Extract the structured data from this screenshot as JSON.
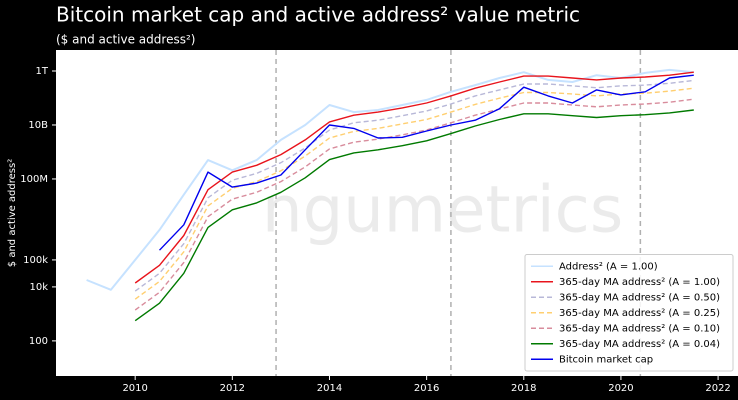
{
  "chart_data": {
    "type": "line",
    "title": "Bitcoin market cap and active address² value metric",
    "subtitle": "($ and active address²)",
    "y_label": "$ and active address²",
    "watermark": "ngumetrics",
    "x": [
      2009,
      2009.5,
      2010,
      2010.5,
      2011,
      2011.5,
      2012,
      2012.5,
      2013,
      2013.5,
      2014,
      2014.5,
      2015,
      2015.5,
      2016,
      2016.5,
      2017,
      2017.5,
      2018,
      2018.5,
      2019,
      2019.5,
      2020,
      2020.5,
      2021,
      2021.5
    ],
    "series": [
      {
        "name": "Address² (A = 1.00)",
        "color": "#c6e2ff",
        "dashed": false,
        "values": [
          18000,
          7800,
          100000,
          1300000,
          26000000,
          500000000,
          210000000,
          500000000,
          2800000000,
          10000000000,
          55000000000,
          30000000000,
          36000000000,
          55000000000,
          85000000000,
          170000000000,
          300000000000,
          550000000000,
          900000000000,
          470000000000,
          390000000000,
          700000000000,
          550000000000,
          850000000000,
          1100000000000,
          900000000000
        ]
      },
      {
        "name": "365-day MA address² (A = 1.00)",
        "color": "#e8141c",
        "dashed": false,
        "values": [
          null,
          null,
          14000,
          63000,
          800000,
          40000000,
          180000000,
          320000000,
          800000000,
          2800000000,
          13000000000,
          23000000000,
          30000000000,
          43000000000,
          65000000000,
          120000000000,
          230000000000,
          390000000000,
          650000000000,
          650000000000,
          550000000000,
          470000000000,
          550000000000,
          600000000000,
          700000000000,
          900000000000
        ]
      },
      {
        "name": "365-day MA address² (A = 0.50)",
        "color": "#b8b8d8",
        "dashed": true,
        "values": [
          null,
          null,
          7000,
          32000,
          400000,
          20000000,
          90000000,
          160000000,
          400000000,
          1400000000,
          6500000000,
          12000000000,
          15000000000,
          22000000000,
          33000000000,
          60000000000,
          120000000000,
          200000000000,
          330000000000,
          330000000000,
          280000000000,
          240000000000,
          280000000000,
          300000000000,
          350000000000,
          450000000000
        ]
      },
      {
        "name": "365-day MA address² (A = 0.25)",
        "color": "#ffcf70",
        "dashed": true,
        "values": [
          null,
          null,
          3500,
          16000,
          200000,
          10000000,
          45000000,
          80000000,
          200000000,
          700000000,
          3300000000,
          5800000000,
          7500000000,
          11000000000,
          16000000000,
          30000000000,
          58000000000,
          98000000000,
          160000000000,
          160000000000,
          140000000000,
          120000000000,
          140000000000,
          150000000000,
          180000000000,
          230000000000
        ]
      },
      {
        "name": "365-day MA address² (A = 0.10)",
        "color": "#d88c9c",
        "dashed": true,
        "values": [
          null,
          null,
          1400,
          6300,
          80000,
          4000000,
          18000000,
          32000000,
          80000000,
          280000000,
          1300000000,
          2300000000,
          3000000000,
          4300000000,
          6500000000,
          12000000000,
          23000000000,
          39000000000,
          65000000000,
          65000000000,
          55000000000,
          47000000000,
          55000000000,
          60000000000,
          70000000000,
          90000000000
        ]
      },
      {
        "name": "365-day MA address² (A = 0.04)",
        "color": "#007a00",
        "dashed": false,
        "values": [
          null,
          null,
          560,
          2500,
          32000,
          1600000,
          7200000,
          13000000,
          32000000,
          110000000,
          520000000,
          920000000,
          1200000000,
          1700000000,
          2600000000,
          4800000000,
          9200000000,
          16000000000,
          26000000000,
          26000000000,
          22000000000,
          19000000000,
          22000000000,
          24000000000,
          28000000000,
          36000000000
        ]
      },
      {
        "name": "Bitcoin market cap",
        "color": "#0000ee",
        "dashed": false,
        "values": [
          null,
          null,
          null,
          230000,
          2000000,
          180000000,
          50000000,
          70000000,
          140000000,
          1200000000,
          10000000000,
          7500000000,
          3300000000,
          3500000000,
          6000000000,
          10000000000,
          15000000000,
          40000000000,
          250000000000,
          120000000000,
          65000000000,
          200000000000,
          130000000000,
          170000000000,
          550000000000,
          700000000000
        ]
      }
    ],
    "xlim": [
      2008.37,
      2022.41
    ],
    "xticks": [
      2010,
      2012,
      2014,
      2016,
      2018,
      2020,
      2022
    ],
    "ylim": [
      5,
      6000000000000
    ],
    "yscale": "log",
    "yticks": [
      100,
      {
        "value": 10000,
        "label": "10k"
      },
      {
        "value": 100000,
        "label": "100k"
      },
      {
        "value": 100000000,
        "label": "100M"
      },
      {
        "value": 10000000000,
        "label": "10B"
      },
      {
        "value": 1000000000000,
        "label": "1T"
      }
    ],
    "vlines": [
      2012.9,
      2016.5,
      2020.4
    ],
    "grid": false,
    "legend": "lower right"
  }
}
